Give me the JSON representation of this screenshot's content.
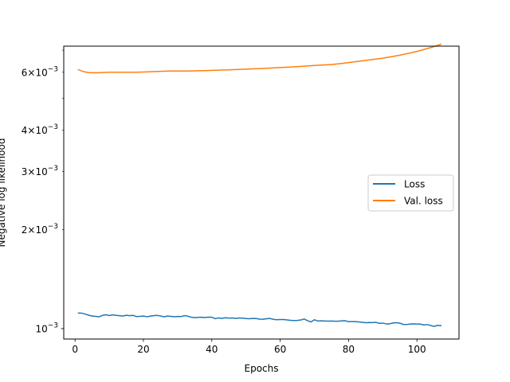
{
  "chart_data": {
    "type": "line",
    "title": "",
    "xlabel": "Epochs",
    "ylabel": "Negative log likelihood",
    "yscale": "log",
    "xlim": [
      -3.3,
      112.3
    ],
    "ylim": [
      0.00093,
      0.0072
    ],
    "grid": false,
    "legend_position": "center-right",
    "x_ticks": [
      {
        "value": 0,
        "label": "0"
      },
      {
        "value": 20,
        "label": "20"
      },
      {
        "value": 40,
        "label": "40"
      },
      {
        "value": 60,
        "label": "60"
      },
      {
        "value": 80,
        "label": "80"
      },
      {
        "value": 100,
        "label": "100"
      }
    ],
    "y_ticks": [
      {
        "value": 0.001,
        "mantissa": "",
        "exponent": "−3"
      },
      {
        "value": 0.002,
        "mantissa": "2×",
        "exponent": "−3"
      },
      {
        "value": 0.003,
        "mantissa": "3×",
        "exponent": "−3"
      },
      {
        "value": 0.004,
        "mantissa": "4×",
        "exponent": "−3"
      },
      {
        "value": 0.006,
        "mantissa": "6×",
        "exponent": "−3"
      }
    ],
    "y_tick_base": "10",
    "series": [
      {
        "name": "Loss",
        "color": "#1f77b4",
        "x": [
          1,
          2,
          3,
          4,
          5,
          6,
          7,
          8,
          9,
          10,
          11,
          12,
          13,
          14,
          15,
          16,
          17,
          18,
          19,
          20,
          21,
          22,
          23,
          24,
          25,
          26,
          27,
          28,
          29,
          30,
          31,
          32,
          33,
          34,
          35,
          36,
          37,
          38,
          39,
          40,
          41,
          42,
          43,
          44,
          45,
          46,
          47,
          48,
          49,
          50,
          51,
          52,
          53,
          54,
          55,
          56,
          57,
          58,
          59,
          60,
          61,
          62,
          63,
          64,
          65,
          66,
          67,
          68,
          69,
          70,
          71,
          72,
          73,
          74,
          75,
          76,
          77,
          78,
          79,
          80,
          81,
          82,
          83,
          84,
          85,
          86,
          87,
          88,
          89,
          90,
          91,
          92,
          93,
          94,
          95,
          96,
          97,
          98,
          99,
          100,
          101,
          102,
          103,
          104,
          105,
          106,
          107
        ],
        "y": [
          0.001115,
          0.001114,
          0.001107,
          0.001098,
          0.001092,
          0.00109,
          0.001086,
          0.001097,
          0.001102,
          0.001096,
          0.001101,
          0.001097,
          0.001095,
          0.001092,
          0.001098,
          0.001095,
          0.001097,
          0.001088,
          0.00109,
          0.001092,
          0.001087,
          0.001091,
          0.001095,
          0.001097,
          0.001093,
          0.001086,
          0.001092,
          0.00109,
          0.001087,
          0.001089,
          0.001088,
          0.001095,
          0.001091,
          0.001083,
          0.00108,
          0.001082,
          0.001083,
          0.001081,
          0.001084,
          0.001083,
          0.001072,
          0.001078,
          0.001074,
          0.001079,
          0.001076,
          0.001078,
          0.001074,
          0.001078,
          0.001076,
          0.001073,
          0.001072,
          0.001074,
          0.001073,
          0.001069,
          0.001068,
          0.001072,
          0.001074,
          0.001067,
          0.001064,
          0.001066,
          0.001066,
          0.001063,
          0.00106,
          0.001058,
          0.001059,
          0.001062,
          0.00107,
          0.001057,
          0.001048,
          0.001064,
          0.001055,
          0.001056,
          0.001055,
          0.001054,
          0.001055,
          0.001053,
          0.001053,
          0.001056,
          0.001057,
          0.00105,
          0.00105,
          0.00105,
          0.001048,
          0.001045,
          0.001042,
          0.001044,
          0.001043,
          0.001045,
          0.001038,
          0.001039,
          0.001034,
          0.001034,
          0.001041,
          0.001042,
          0.001039,
          0.00103,
          0.001029,
          0.001033,
          0.001034,
          0.001033,
          0.001032,
          0.001026,
          0.001029,
          0.001022,
          0.001016,
          0.001023,
          0.001021
        ]
      },
      {
        "name": "Val. loss",
        "color": "#ff7f0e",
        "x": [
          1,
          2,
          3,
          4,
          5,
          6,
          7,
          8,
          10,
          12,
          15,
          18,
          20,
          22,
          25,
          28,
          30,
          33,
          35,
          38,
          40,
          45,
          50,
          55,
          60,
          65,
          70,
          75,
          78,
          80,
          85,
          90,
          95,
          100,
          103,
          105,
          107
        ],
        "y": [
          0.00611,
          0.00605,
          0.00601,
          0.00599,
          0.00598,
          0.00598,
          0.00598,
          0.00599,
          0.006,
          0.006,
          0.006,
          0.006,
          0.00601,
          0.00602,
          0.00604,
          0.00605,
          0.00605,
          0.00605,
          0.00606,
          0.00607,
          0.00608,
          0.0061,
          0.00613,
          0.00616,
          0.0062,
          0.00624,
          0.00629,
          0.00633,
          0.00638,
          0.00642,
          0.00652,
          0.00662,
          0.00676,
          0.00694,
          0.00708,
          0.00718,
          0.0073
        ]
      }
    ]
  }
}
